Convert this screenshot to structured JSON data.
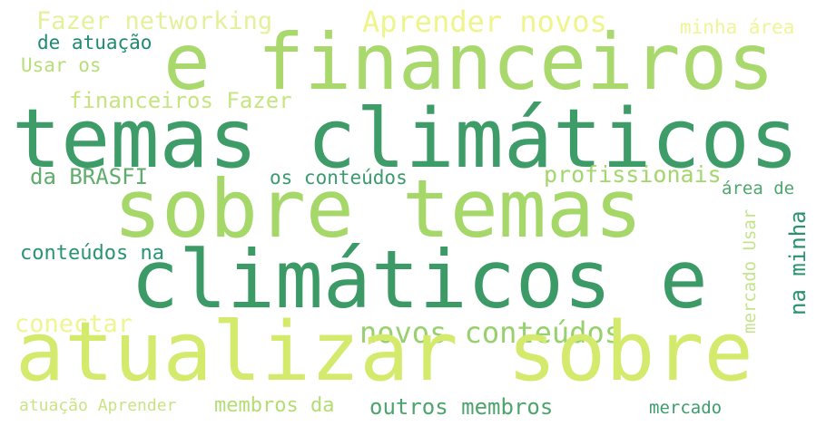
{
  "wordcloud": {
    "words": [
      {
        "text": "Fazer networking",
        "color": "#e4f19a"
      },
      {
        "text": "Aprender novos",
        "color": "#eef58b"
      },
      {
        "text": "minha área",
        "color": "#eef694"
      },
      {
        "text": "de atuação",
        "color": "#1f8a74"
      },
      {
        "text": "e financeiros",
        "color": "#a9d86c"
      },
      {
        "text": "Usar os",
        "color": "#b8de79"
      },
      {
        "text": "financeiros Fazer",
        "color": "#c6e581"
      },
      {
        "text": "temas climáticos",
        "color": "#3d9c68"
      },
      {
        "text": "da BRASFI",
        "color": "#5fad6c"
      },
      {
        "text": "os conteúdos",
        "color": "#3a9b6d"
      },
      {
        "text": "profissionais",
        "color": "#a3d66d"
      },
      {
        "text": "área de",
        "color": "#4ea66d"
      },
      {
        "text": "sobre temas",
        "color": "#a6d769"
      },
      {
        "text": "conteúdos na",
        "color": "#2a9470"
      },
      {
        "text": "climáticos e",
        "color": "#3b9a66"
      },
      {
        "text": "na minha",
        "color": "#2a9270"
      },
      {
        "text": "mercado Usar",
        "color": "#c4e48c"
      },
      {
        "text": "conectar",
        "color": "#eef591"
      },
      {
        "text": "novos conteúdos",
        "color": "#97d06e"
      },
      {
        "text": "atualizar sobre",
        "color": "#d3ea6d"
      },
      {
        "text": "atuação Aprender",
        "color": "#c8e486"
      },
      {
        "text": "membros da",
        "color": "#b4dd74"
      },
      {
        "text": "outros membros",
        "color": "#4da56d"
      },
      {
        "text": "mercado",
        "color": "#3e9d6c"
      }
    ]
  }
}
